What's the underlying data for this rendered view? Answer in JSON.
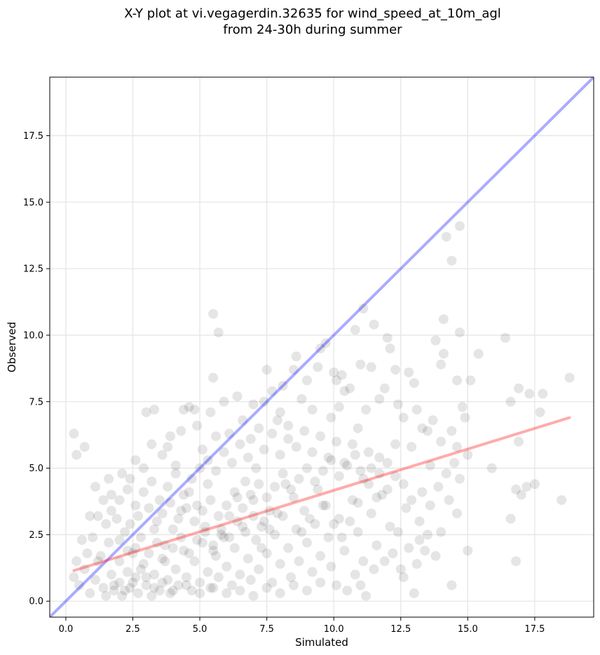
{
  "chart_data": {
    "type": "scatter",
    "title_lines": [
      "X-Y plot at vi.vegagerdin.32635 for wind_speed_at_10m_agl",
      "from 24-30h during summer"
    ],
    "xlabel": "Simulated",
    "ylabel": "Observed",
    "xlim": [
      -0.6,
      19.7
    ],
    "ylim": [
      -0.6,
      19.7
    ],
    "xticks": [
      0.0,
      2.5,
      5.0,
      7.5,
      10.0,
      12.5,
      15.0,
      17.5
    ],
    "xtick_labels": [
      "0.0",
      "2.5",
      "5.0",
      "7.5",
      "10.0",
      "12.5",
      "15.0",
      "17.5"
    ],
    "yticks": [
      0.0,
      2.5,
      5.0,
      7.5,
      10.0,
      12.5,
      15.0,
      17.5
    ],
    "ytick_labels": [
      "0.0",
      "2.5",
      "5.0",
      "7.5",
      "10.0",
      "12.5",
      "15.0",
      "17.5"
    ],
    "grid": true,
    "colors": {
      "points": "#000000",
      "identity_line": "#0000ff",
      "fit_line": "#ff0000",
      "grid": "#e6e6e6"
    },
    "lines": [
      {
        "role": "identity",
        "x": [
          -0.6,
          19.7
        ],
        "y": [
          -0.6,
          19.7
        ]
      },
      {
        "role": "fit",
        "x": [
          0.3,
          18.8
        ],
        "y": [
          1.15,
          6.9
        ]
      }
    ],
    "points": [
      [
        0.3,
        6.3
      ],
      [
        0.4,
        5.5
      ],
      [
        0.7,
        5.8
      ],
      [
        0.9,
        3.2
      ],
      [
        1.1,
        4.3
      ],
      [
        1.4,
        3.8
      ],
      [
        1.6,
        4.6
      ],
      [
        1.7,
        4.0
      ],
      [
        2.1,
        4.8
      ],
      [
        2.4,
        4.6
      ],
      [
        2.6,
        5.3
      ],
      [
        2.9,
        5.0
      ],
      [
        3.0,
        7.1
      ],
      [
        3.2,
        5.9
      ],
      [
        3.3,
        7.2
      ],
      [
        3.6,
        5.5
      ],
      [
        3.8,
        5.8
      ],
      [
        3.9,
        6.2
      ],
      [
        4.1,
        5.1
      ],
      [
        4.3,
        6.4
      ],
      [
        4.4,
        7.2
      ],
      [
        4.6,
        7.3
      ],
      [
        4.8,
        7.2
      ],
      [
        4.9,
        6.6
      ],
      [
        5.1,
        5.7
      ],
      [
        5.3,
        5.3
      ],
      [
        5.4,
        7.1
      ],
      [
        5.5,
        8.4
      ],
      [
        5.5,
        10.8
      ],
      [
        5.7,
        10.1
      ],
      [
        5.6,
        6.2
      ],
      [
        5.9,
        7.5
      ],
      [
        6.1,
        6.3
      ],
      [
        6.4,
        7.7
      ],
      [
        6.6,
        6.8
      ],
      [
        6.9,
        6.1
      ],
      [
        7.0,
        7.4
      ],
      [
        7.2,
        6.5
      ],
      [
        7.4,
        7.5
      ],
      [
        7.5,
        8.7
      ],
      [
        7.7,
        7.9
      ],
      [
        7.9,
        6.8
      ],
      [
        8.0,
        7.1
      ],
      [
        8.1,
        8.1
      ],
      [
        8.3,
        6.6
      ],
      [
        8.5,
        8.7
      ],
      [
        8.6,
        9.2
      ],
      [
        8.8,
        7.6
      ],
      [
        9.0,
        8.3
      ],
      [
        9.2,
        7.2
      ],
      [
        9.4,
        8.8
      ],
      [
        9.5,
        9.5
      ],
      [
        9.7,
        9.7
      ],
      [
        9.9,
        6.9
      ],
      [
        10.0,
        8.6
      ],
      [
        10.1,
        8.3
      ],
      [
        10.2,
        7.3
      ],
      [
        10.3,
        8.5
      ],
      [
        10.4,
        7.9
      ],
      [
        10.6,
        8.0
      ],
      [
        10.8,
        10.2
      ],
      [
        10.9,
        6.5
      ],
      [
        11.0,
        8.9
      ],
      [
        11.1,
        11.0
      ],
      [
        11.2,
        7.2
      ],
      [
        11.4,
        8.8
      ],
      [
        11.5,
        10.4
      ],
      [
        11.7,
        7.6
      ],
      [
        11.9,
        8.0
      ],
      [
        12.0,
        9.9
      ],
      [
        12.1,
        9.5
      ],
      [
        12.3,
        8.7
      ],
      [
        12.4,
        7.4
      ],
      [
        12.6,
        6.9
      ],
      [
        12.8,
        8.6
      ],
      [
        13.0,
        8.2
      ],
      [
        13.1,
        7.2
      ],
      [
        13.3,
        6.5
      ],
      [
        13.5,
        6.4
      ],
      [
        13.8,
        9.8
      ],
      [
        14.0,
        8.9
      ],
      [
        14.1,
        9.3
      ],
      [
        14.1,
        10.6
      ],
      [
        14.2,
        13.7
      ],
      [
        14.4,
        12.8
      ],
      [
        14.6,
        8.3
      ],
      [
        14.7,
        10.1
      ],
      [
        14.7,
        14.1
      ],
      [
        14.8,
        7.3
      ],
      [
        14.9,
        6.9
      ],
      [
        15.1,
        8.3
      ],
      [
        15.4,
        9.3
      ],
      [
        15.9,
        5.0
      ],
      [
        16.4,
        9.9
      ],
      [
        16.6,
        7.5
      ],
      [
        16.6,
        3.1
      ],
      [
        16.8,
        4.2
      ],
      [
        16.8,
        1.5
      ],
      [
        16.9,
        8.0
      ],
      [
        16.9,
        6.0
      ],
      [
        17.0,
        4.0
      ],
      [
        17.2,
        4.3
      ],
      [
        17.3,
        7.8
      ],
      [
        17.5,
        4.4
      ],
      [
        17.7,
        7.1
      ],
      [
        17.8,
        7.8
      ],
      [
        18.5,
        3.8
      ],
      [
        18.8,
        8.4
      ],
      [
        15.0,
        1.9
      ],
      [
        14.4,
        0.6
      ],
      [
        13.0,
        0.3
      ],
      [
        12.6,
        0.9
      ],
      [
        13.2,
        2.3
      ],
      [
        13.8,
        1.7
      ],
      [
        14.6,
        3.3
      ],
      [
        14.7,
        4.6
      ],
      [
        15.0,
        5.5
      ],
      [
        14.3,
        3.8
      ],
      [
        13.9,
        4.3
      ],
      [
        13.6,
        5.1
      ],
      [
        12.5,
        1.2
      ],
      [
        12.2,
        1.8
      ],
      [
        11.9,
        1.5
      ],
      [
        11.5,
        1.2
      ],
      [
        11.2,
        0.2
      ],
      [
        11.0,
        0.6
      ],
      [
        10.8,
        1.0
      ],
      [
        10.5,
        0.4
      ],
      [
        10.1,
        0.6
      ],
      [
        12.9,
        5.8
      ],
      [
        12.7,
        3.5
      ],
      [
        12.4,
        2.6
      ],
      [
        13.3,
        4.1
      ],
      [
        13.6,
        3.6
      ],
      [
        14.0,
        6.0
      ],
      [
        14.2,
        4.8
      ],
      [
        14.5,
        5.2
      ],
      [
        14.6,
        5.8
      ],
      [
        13.7,
        6.8
      ],
      [
        14.4,
        6.4
      ],
      [
        12.3,
        4.7
      ],
      [
        12.0,
        5.2
      ],
      [
        11.6,
        3.9
      ],
      [
        11.3,
        4.4
      ],
      [
        10.9,
        3.7
      ],
      [
        10.6,
        3.0
      ],
      [
        10.3,
        2.4
      ],
      [
        10.0,
        2.9
      ],
      [
        9.7,
        3.6
      ],
      [
        9.4,
        4.2
      ],
      [
        9.1,
        3.1
      ],
      [
        8.8,
        2.6
      ],
      [
        8.5,
        3.9
      ],
      [
        8.2,
        4.4
      ],
      [
        7.9,
        3.3
      ],
      [
        7.6,
        2.7
      ],
      [
        7.3,
        2.0
      ],
      [
        7.0,
        3.8
      ],
      [
        6.7,
        4.5
      ],
      [
        6.4,
        3.9
      ],
      [
        6.1,
        3.2
      ],
      [
        5.8,
        2.5
      ],
      [
        5.5,
        1.9
      ],
      [
        5.2,
        2.8
      ],
      [
        4.9,
        3.6
      ],
      [
        4.6,
        4.1
      ],
      [
        4.3,
        3.4
      ],
      [
        4.0,
        2.7
      ],
      [
        3.7,
        2.1
      ],
      [
        3.4,
        3.0
      ],
      [
        3.1,
        3.5
      ],
      [
        2.8,
        2.4
      ],
      [
        2.5,
        1.8
      ],
      [
        2.2,
        2.6
      ],
      [
        1.9,
        3.1
      ],
      [
        1.6,
        2.2
      ],
      [
        1.3,
        1.7
      ],
      [
        1.0,
        2.4
      ],
      [
        0.8,
        1.8
      ],
      [
        0.6,
        2.3
      ],
      [
        0.4,
        1.5
      ],
      [
        0.3,
        0.9
      ],
      [
        0.5,
        0.6
      ],
      [
        0.7,
        1.2
      ],
      [
        0.9,
        0.3
      ],
      [
        1.1,
        0.8
      ],
      [
        1.2,
        1.5
      ],
      [
        1.4,
        0.5
      ],
      [
        1.5,
        0.2
      ],
      [
        1.7,
        1.0
      ],
      [
        1.8,
        0.4
      ],
      [
        2.0,
        0.7
      ],
      [
        2.1,
        0.2
      ],
      [
        2.3,
        1.1
      ],
      [
        2.4,
        0.5
      ],
      [
        2.6,
        0.9
      ],
      [
        2.7,
        0.3
      ],
      [
        2.9,
        1.4
      ],
      [
        3.0,
        0.6
      ],
      [
        3.2,
        0.2
      ],
      [
        3.3,
        1.0
      ],
      [
        3.5,
        0.4
      ],
      [
        3.6,
        1.6
      ],
      [
        3.8,
        0.8
      ],
      [
        3.9,
        0.3
      ],
      [
        4.1,
        1.2
      ],
      [
        4.2,
        0.6
      ],
      [
        4.4,
        1.9
      ],
      [
        4.5,
        0.9
      ],
      [
        4.7,
        0.4
      ],
      [
        4.8,
        1.5
      ],
      [
        5.0,
        0.7
      ],
      [
        5.1,
        2.2
      ],
      [
        5.3,
        1.1
      ],
      [
        5.4,
        0.5
      ],
      [
        5.6,
        1.7
      ],
      [
        5.7,
        0.9
      ],
      [
        5.9,
        2.4
      ],
      [
        6.0,
        1.3
      ],
      [
        6.2,
        0.6
      ],
      [
        6.3,
        2.0
      ],
      [
        6.5,
        1.0
      ],
      [
        6.6,
        2.8
      ],
      [
        6.8,
        1.6
      ],
      [
        6.9,
        0.8
      ],
      [
        7.1,
        2.3
      ],
      [
        7.2,
        1.2
      ],
      [
        7.4,
        3.0
      ],
      [
        7.5,
        1.8
      ],
      [
        7.7,
        0.7
      ],
      [
        7.8,
        2.5
      ],
      [
        8.0,
        1.4
      ],
      [
        8.1,
        3.2
      ],
      [
        8.3,
        2.0
      ],
      [
        8.4,
        0.9
      ],
      [
        8.6,
        2.7
      ],
      [
        8.7,
        1.5
      ],
      [
        8.9,
        3.4
      ],
      [
        9.0,
        2.2
      ],
      [
        9.2,
        1.1
      ],
      [
        9.3,
        2.9
      ],
      [
        9.5,
        1.7
      ],
      [
        9.6,
        3.6
      ],
      [
        9.8,
        2.4
      ],
      [
        9.9,
        1.3
      ],
      [
        10.2,
        3.1
      ],
      [
        10.4,
        1.9
      ],
      [
        10.7,
        3.8
      ],
      [
        10.9,
        2.6
      ],
      [
        11.1,
        1.5
      ],
      [
        11.4,
        3.3
      ],
      [
        11.6,
        2.1
      ],
      [
        11.8,
        4.0
      ],
      [
        12.1,
        2.8
      ],
      [
        11.7,
        4.8
      ],
      [
        11.3,
        5.6
      ],
      [
        11.0,
        4.9
      ],
      [
        10.7,
        5.9
      ],
      [
        10.4,
        5.2
      ],
      [
        10.1,
        6.0
      ],
      [
        9.8,
        5.4
      ],
      [
        9.5,
        6.2
      ],
      [
        9.2,
        5.6
      ],
      [
        8.9,
        6.4
      ],
      [
        8.6,
        5.8
      ],
      [
        8.3,
        6.1
      ],
      [
        8.0,
        5.5
      ],
      [
        7.7,
        6.3
      ],
      [
        7.4,
        5.7
      ],
      [
        7.1,
        5.0
      ],
      [
        6.8,
        5.4
      ],
      [
        6.5,
        5.9
      ],
      [
        6.2,
        5.2
      ],
      [
        5.9,
        5.6
      ],
      [
        5.6,
        4.9
      ],
      [
        5.3,
        4.4
      ],
      [
        5.0,
        5.0
      ],
      [
        4.7,
        4.6
      ],
      [
        4.4,
        4.0
      ],
      [
        4.1,
        4.8
      ],
      [
        3.8,
        4.3
      ],
      [
        3.5,
        3.8
      ],
      [
        3.2,
        4.5
      ],
      [
        2.9,
        4.1
      ],
      [
        2.6,
        3.6
      ],
      [
        2.3,
        4.2
      ],
      [
        2.0,
        3.8
      ],
      [
        1.7,
        3.4
      ],
      [
        1.5,
        2.9
      ],
      [
        1.2,
        3.2
      ],
      [
        2.0,
        1.5
      ],
      [
        2.3,
        1.9
      ],
      [
        2.6,
        2.0
      ],
      [
        2.8,
        1.2
      ],
      [
        3.1,
        1.8
      ],
      [
        3.4,
        2.2
      ],
      [
        3.7,
        1.5
      ],
      [
        4.0,
        2.0
      ],
      [
        4.3,
        2.4
      ],
      [
        4.6,
        1.8
      ],
      [
        4.9,
        2.3
      ],
      [
        5.2,
        2.6
      ],
      [
        5.5,
        2.1
      ],
      [
        5.8,
        2.7
      ],
      [
        6.1,
        2.4
      ],
      [
        6.4,
        3.0
      ],
      [
        6.7,
        2.6
      ],
      [
        7.0,
        3.2
      ],
      [
        7.3,
        2.8
      ],
      [
        7.6,
        3.4
      ],
      [
        1.8,
        0.6
      ],
      [
        2.2,
        0.4
      ],
      [
        2.5,
        0.7
      ],
      [
        3.0,
        0.9
      ],
      [
        3.3,
        0.5
      ],
      [
        3.6,
        0.7
      ],
      [
        4.0,
        0.4
      ],
      [
        4.5,
        0.6
      ],
      [
        5.0,
        0.3
      ],
      [
        5.5,
        0.5
      ],
      [
        6.0,
        0.3
      ],
      [
        6.5,
        0.4
      ],
      [
        7.0,
        0.2
      ],
      [
        7.5,
        0.5
      ],
      [
        8.0,
        0.3
      ],
      [
        8.5,
        0.6
      ],
      [
        9.0,
        0.4
      ],
      [
        9.5,
        0.7
      ],
      [
        2.0,
        2.3
      ],
      [
        2.4,
        2.9
      ],
      [
        2.7,
        3.2
      ],
      [
        3.3,
        2.7
      ],
      [
        3.6,
        3.3
      ],
      [
        3.9,
        3.7
      ],
      [
        4.2,
        3.1
      ],
      [
        4.5,
        3.5
      ],
      [
        4.8,
        3.0
      ],
      [
        5.1,
        3.4
      ],
      [
        5.4,
        3.8
      ],
      [
        5.7,
        3.2
      ],
      [
        6.0,
        3.6
      ],
      [
        6.3,
        4.1
      ],
      [
        6.6,
        3.5
      ],
      [
        6.9,
        4.0
      ],
      [
        7.2,
        4.4
      ],
      [
        7.5,
        3.9
      ],
      [
        7.8,
        4.3
      ],
      [
        8.1,
        4.8
      ],
      [
        8.4,
        4.2
      ],
      [
        8.7,
        4.6
      ],
      [
        9.0,
        5.0
      ],
      [
        9.3,
        4.5
      ],
      [
        9.6,
        4.9
      ],
      [
        9.9,
        5.3
      ],
      [
        10.2,
        4.7
      ],
      [
        10.5,
        5.1
      ],
      [
        10.8,
        5.5
      ],
      [
        11.1,
        4.6
      ],
      [
        11.4,
        5.0
      ],
      [
        11.7,
        5.4
      ],
      [
        12.0,
        4.2
      ],
      [
        12.3,
        5.9
      ],
      [
        12.6,
        4.4
      ],
      [
        12.9,
        3.8
      ],
      [
        13.2,
        3.0
      ],
      [
        13.5,
        2.5
      ],
      [
        13.1,
        1.4
      ],
      [
        12.8,
        2.0
      ],
      [
        13.4,
        1.9
      ],
      [
        14.0,
        2.6
      ]
    ]
  }
}
